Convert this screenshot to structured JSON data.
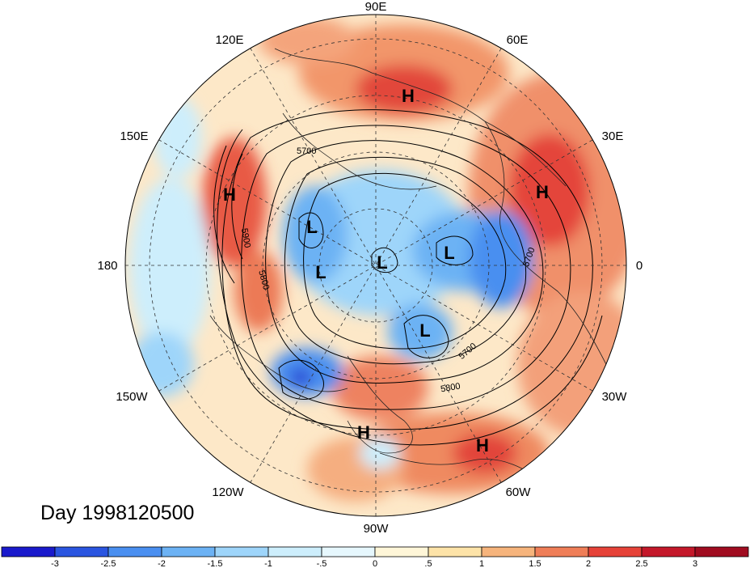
{
  "title": "Day 1998120500",
  "longitude_labels": [
    "90E",
    "60E",
    "30E",
    "0",
    "30W",
    "60W",
    "90W",
    "120W",
    "150W",
    "180",
    "150E",
    "120E"
  ],
  "pressure_systems": [
    {
      "type": "H",
      "label": "H"
    },
    {
      "type": "H",
      "label": "H"
    },
    {
      "type": "H",
      "label": "H"
    },
    {
      "type": "H",
      "label": "H"
    },
    {
      "type": "H",
      "label": "H"
    },
    {
      "type": "L",
      "label": "L"
    },
    {
      "type": "L",
      "label": "L"
    },
    {
      "type": "L",
      "label": "L"
    },
    {
      "type": "L",
      "label": "L"
    },
    {
      "type": "L",
      "label": "L"
    }
  ],
  "contour_labels": [
    "5700",
    "5900",
    "5800",
    "5700",
    "5700",
    "5800"
  ],
  "colorbar": {
    "tick_labels": [
      "-3",
      "-2.5",
      "-2",
      "-1.5",
      "-1",
      "-.5",
      "0",
      ".5",
      "1",
      "1.5",
      "2",
      "2.5",
      "3"
    ],
    "colors": [
      "#1a1acc",
      "#2a55e0",
      "#4a8ff0",
      "#6cb2f4",
      "#9ed5fa",
      "#cdeefc",
      "#e6f7fd",
      "#fff6d8",
      "#fde3a8",
      "#f6b47c",
      "#ef7e58",
      "#e64238",
      "#c4182a",
      "#a00c20"
    ]
  },
  "colors": {
    "ocean_background": "#fde8c8",
    "land_line": "#222222"
  }
}
